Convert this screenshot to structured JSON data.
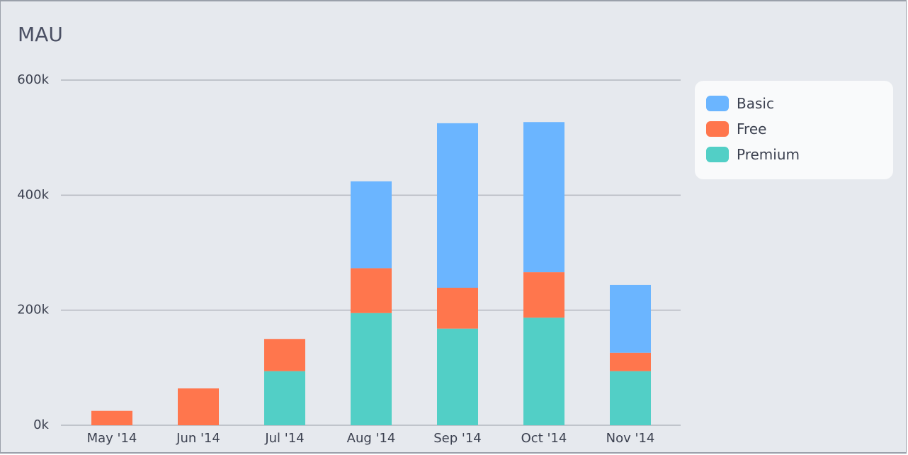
{
  "chart_data": {
    "type": "stacked-bar",
    "title": "MAU",
    "categories": [
      "May '14",
      "Jun '14",
      "Jul '14",
      "Aug '14",
      "Sep '14",
      "Oct '14",
      "Nov '14"
    ],
    "series": [
      {
        "name": "Basic",
        "color": "#6bb5ff",
        "values": [
          null,
          null,
          null,
          151000,
          286000,
          261000,
          118000
        ]
      },
      {
        "name": "Free",
        "color": "#ff764d",
        "values": [
          25000,
          64000,
          56000,
          78000,
          71000,
          79000,
          32000
        ]
      },
      {
        "name": "Premium",
        "color": "#52cfc6",
        "values": [
          null,
          null,
          94000,
          195000,
          168000,
          187000,
          94000
        ]
      }
    ],
    "ylim": [
      0,
      600000
    ],
    "yticks": [
      {
        "value": 0,
        "label": "0k"
      },
      {
        "value": 200000,
        "label": "200k"
      },
      {
        "value": 400000,
        "label": "400k"
      },
      {
        "value": 600000,
        "label": "600k"
      }
    ],
    "grid": true
  }
}
